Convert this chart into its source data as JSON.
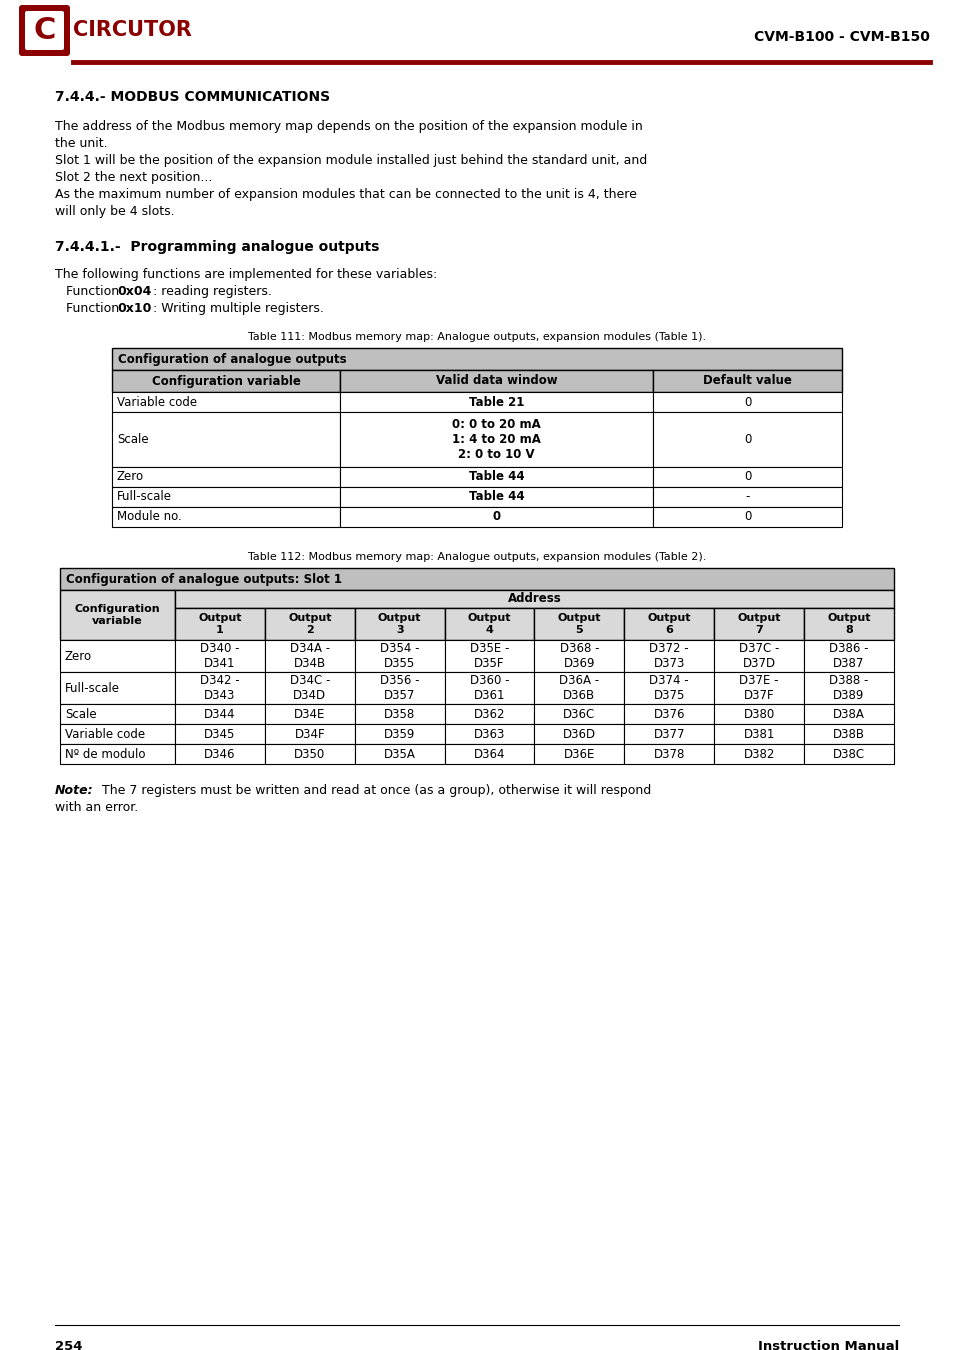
{
  "page_title": "CVM-B100 - CVM-B150",
  "page_number": "254",
  "page_footer_right": "Instruction Manual",
  "section_title": "7.4.4.- MODBUS COMMUNICATIONS",
  "body_lines": [
    "The address of the Modbus memory map depends on the position of the expansion module in",
    "the unit.",
    "Slot 1 will be the position of the expansion module installed just behind the standard unit, and",
    "Slot 2 the next position...",
    "As the maximum number of expansion modules that can be connected to the unit is 4, there",
    "will only be 4 slots."
  ],
  "subsection_title": "7.4.4.1.-  Programming analogue outputs",
  "subsection_text": "The following functions are implemented for these variables:",
  "table1_caption": "Table 111: Modbus memory map: Analogue outputs, expansion modules (Table 1).",
  "table1_header_row0": "Configuration of analogue outputs",
  "table1_header_row1": [
    "Configuration variable",
    "Valid data window",
    "Default value"
  ],
  "table1_rows": [
    [
      "Variable code",
      "Table 21",
      "0"
    ],
    [
      "Scale",
      "0: 0 to 20 mA\n1: 4 to 20 mA\n2: 0 to 10 V",
      "0"
    ],
    [
      "Zero",
      "Table 44",
      "0"
    ],
    [
      "Full-scale",
      "Table 44",
      "-"
    ],
    [
      "Module no.",
      "0",
      "0"
    ]
  ],
  "table2_caption": "Table 112: Modbus memory map: Analogue outputs, expansion modules (Table 2).",
  "table2_header_row0": "Configuration of analogue outputs: Slot 1",
  "table2_header_row1": "Address",
  "table2_rows": [
    [
      "Zero",
      "D340 -\nD341",
      "D34A -\nD34B",
      "D354 -\nD355",
      "D35E -\nD35F",
      "D368 -\nD369",
      "D372 -\nD373",
      "D37C -\nD37D",
      "D386 -\nD387"
    ],
    [
      "Full-scale",
      "D342 -\nD343",
      "D34C -\nD34D",
      "D356 -\nD357",
      "D360 -\nD361",
      "D36A -\nD36B",
      "D374 -\nD375",
      "D37E -\nD37F",
      "D388 -\nD389"
    ],
    [
      "Scale",
      "D344",
      "D34E",
      "D358",
      "D362",
      "D36C",
      "D376",
      "D380",
      "D38A"
    ],
    [
      "Variable code",
      "D345",
      "D34F",
      "D359",
      "D363",
      "D36D",
      "D377",
      "D381",
      "D38B"
    ],
    [
      "Nº de modulo",
      "D346",
      "D350",
      "D35A",
      "D364",
      "D36E",
      "D378",
      "D382",
      "D38C"
    ]
  ],
  "accent_color": "#8B0000",
  "header_bg": "#bfbfbf",
  "subheader_bg": "#d9d9d9",
  "white": "#ffffff"
}
